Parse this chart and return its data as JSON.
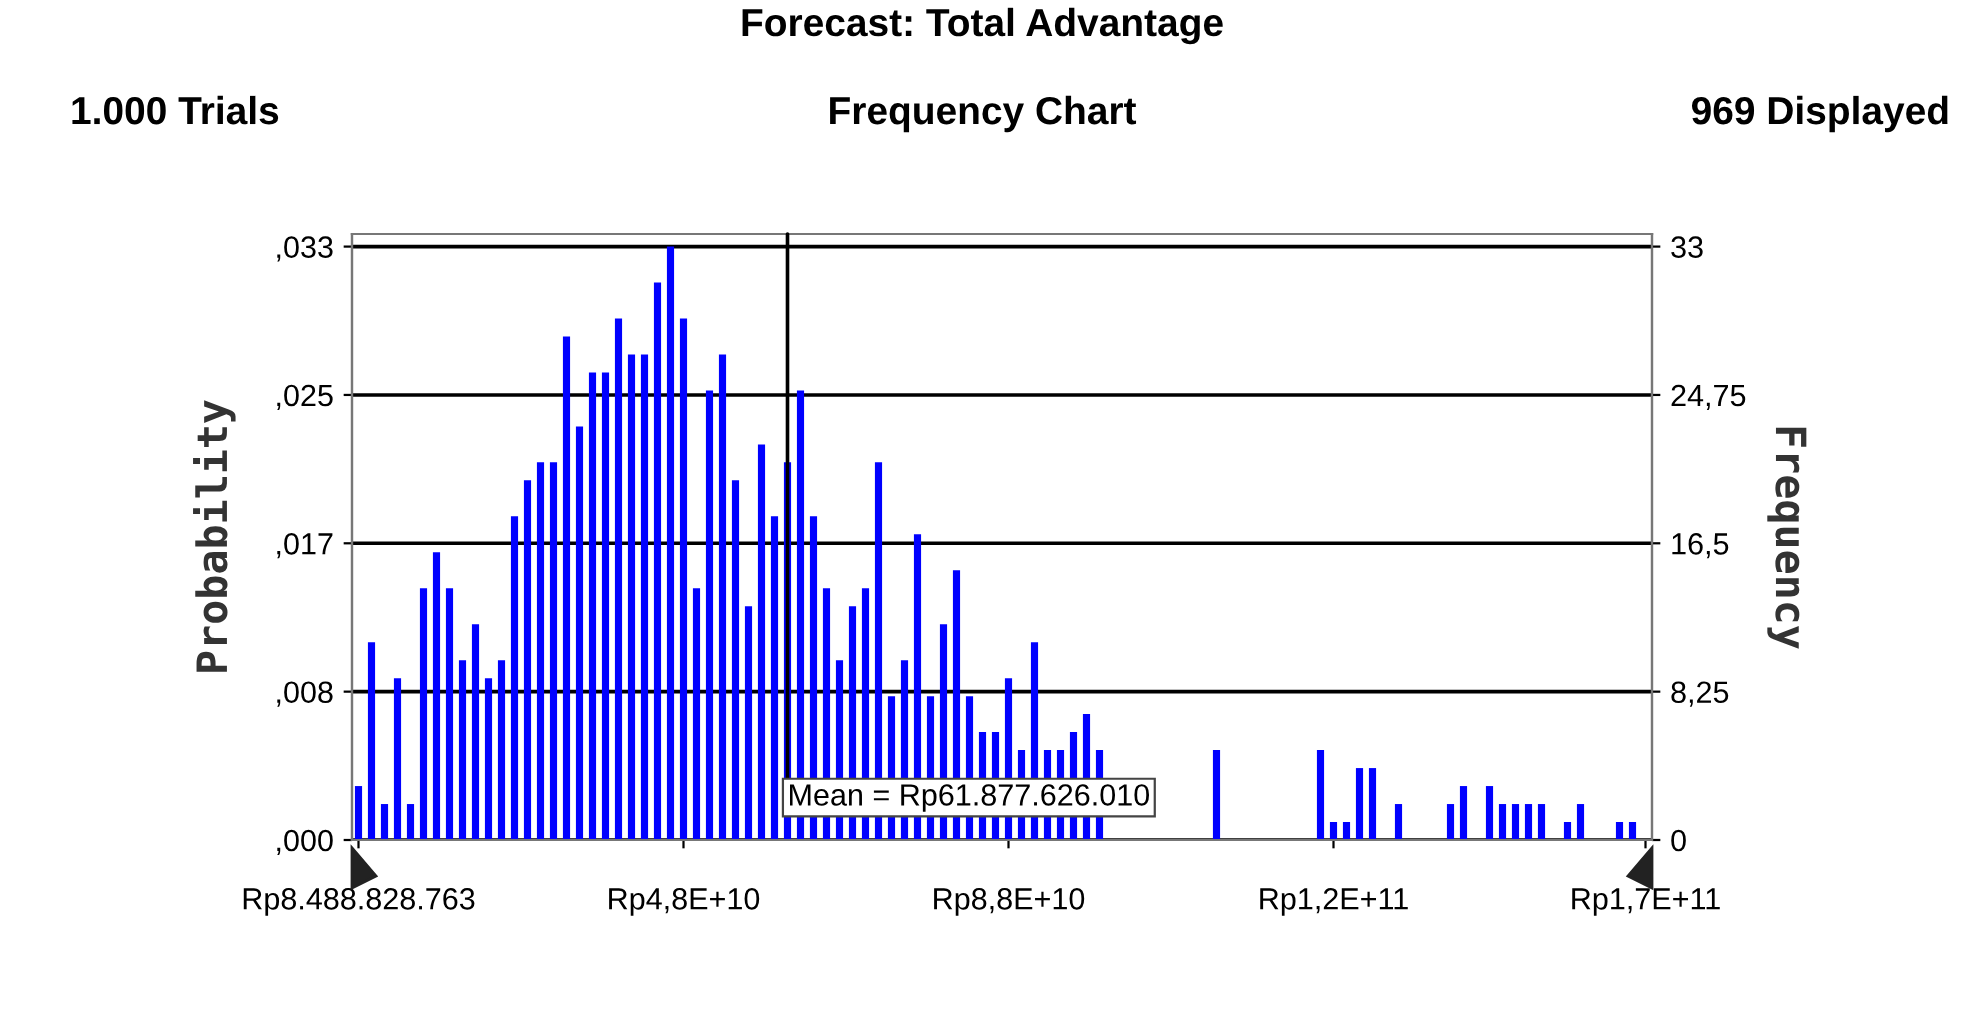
{
  "chart_data": {
    "type": "bar",
    "title": "Forecast: Total Advantage",
    "subtitle": "Frequency Chart",
    "annotations": [
      "1.000 Trials",
      "969 Displayed",
      "Mean = Rp61.877.626.010"
    ],
    "ylabel": "Probability",
    "y2label": "Frequency",
    "categories": [
      "Rp8.488.828.763",
      null,
      null,
      null,
      null,
      null,
      null,
      null,
      null,
      null,
      null,
      null,
      null,
      null,
      null,
      null,
      null,
      null,
      null,
      null,
      null,
      null,
      null,
      null,
      null,
      "Rp4,8E+10",
      null,
      null,
      null,
      null,
      null,
      null,
      null,
      null,
      null,
      null,
      null,
      null,
      null,
      null,
      null,
      null,
      null,
      null,
      null,
      null,
      null,
      null,
      null,
      null,
      "Rp8,8E+10",
      null,
      null,
      null,
      null,
      null,
      null,
      null,
      null,
      null,
      null,
      null,
      null,
      null,
      null,
      null,
      null,
      null,
      null,
      null,
      null,
      null,
      null,
      null,
      null,
      "Rp1,2E+11",
      null,
      null,
      null,
      null,
      null,
      null,
      null,
      null,
      null,
      null,
      null,
      null,
      null,
      null,
      null,
      null,
      null,
      null,
      null,
      null,
      null,
      null,
      null,
      "Rp1,7E+11"
    ],
    "values": [
      3,
      11,
      2,
      9,
      2,
      14,
      16,
      14,
      10,
      12,
      9,
      10,
      18,
      20,
      21,
      21,
      28,
      23,
      26,
      26,
      29,
      27,
      27,
      31,
      33,
      29,
      14,
      25,
      27,
      20,
      13,
      22,
      18,
      21,
      25,
      18,
      14,
      10,
      13,
      14,
      21,
      8,
      10,
      17,
      8,
      12,
      15,
      8,
      6,
      6,
      9,
      5,
      11,
      5,
      5,
      6,
      7,
      5,
      null,
      null,
      null,
      null,
      null,
      null,
      0,
      null,
      5,
      null,
      null,
      null,
      null,
      null,
      null,
      null,
      5,
      1,
      1,
      4,
      4,
      0,
      2,
      0,
      0,
      0,
      2,
      3,
      0,
      3,
      2,
      2,
      2,
      2,
      0,
      1,
      2,
      0,
      0,
      1,
      1,
      0
    ],
    "color": "#0000ff",
    "ylim": [
      0,
      33.7
    ],
    "yticks": [
      {
        "value": 0,
        "label": ",000"
      },
      {
        "value": 8.25,
        "label": ",008"
      },
      {
        "value": 16.5,
        "label": ",017"
      },
      {
        "value": 24.75,
        "label": ",025"
      },
      {
        "value": 33,
        "label": ",033"
      }
    ],
    "y2lim": [
      0,
      33.7
    ],
    "y2ticks": [
      0,
      {
        "value": 8.25,
        "label": "8,25"
      },
      {
        "value": 16.5,
        "label": "16,5"
      },
      {
        "value": 24.75,
        "label": "24,75"
      },
      33
    ],
    "grid": "y"
  }
}
